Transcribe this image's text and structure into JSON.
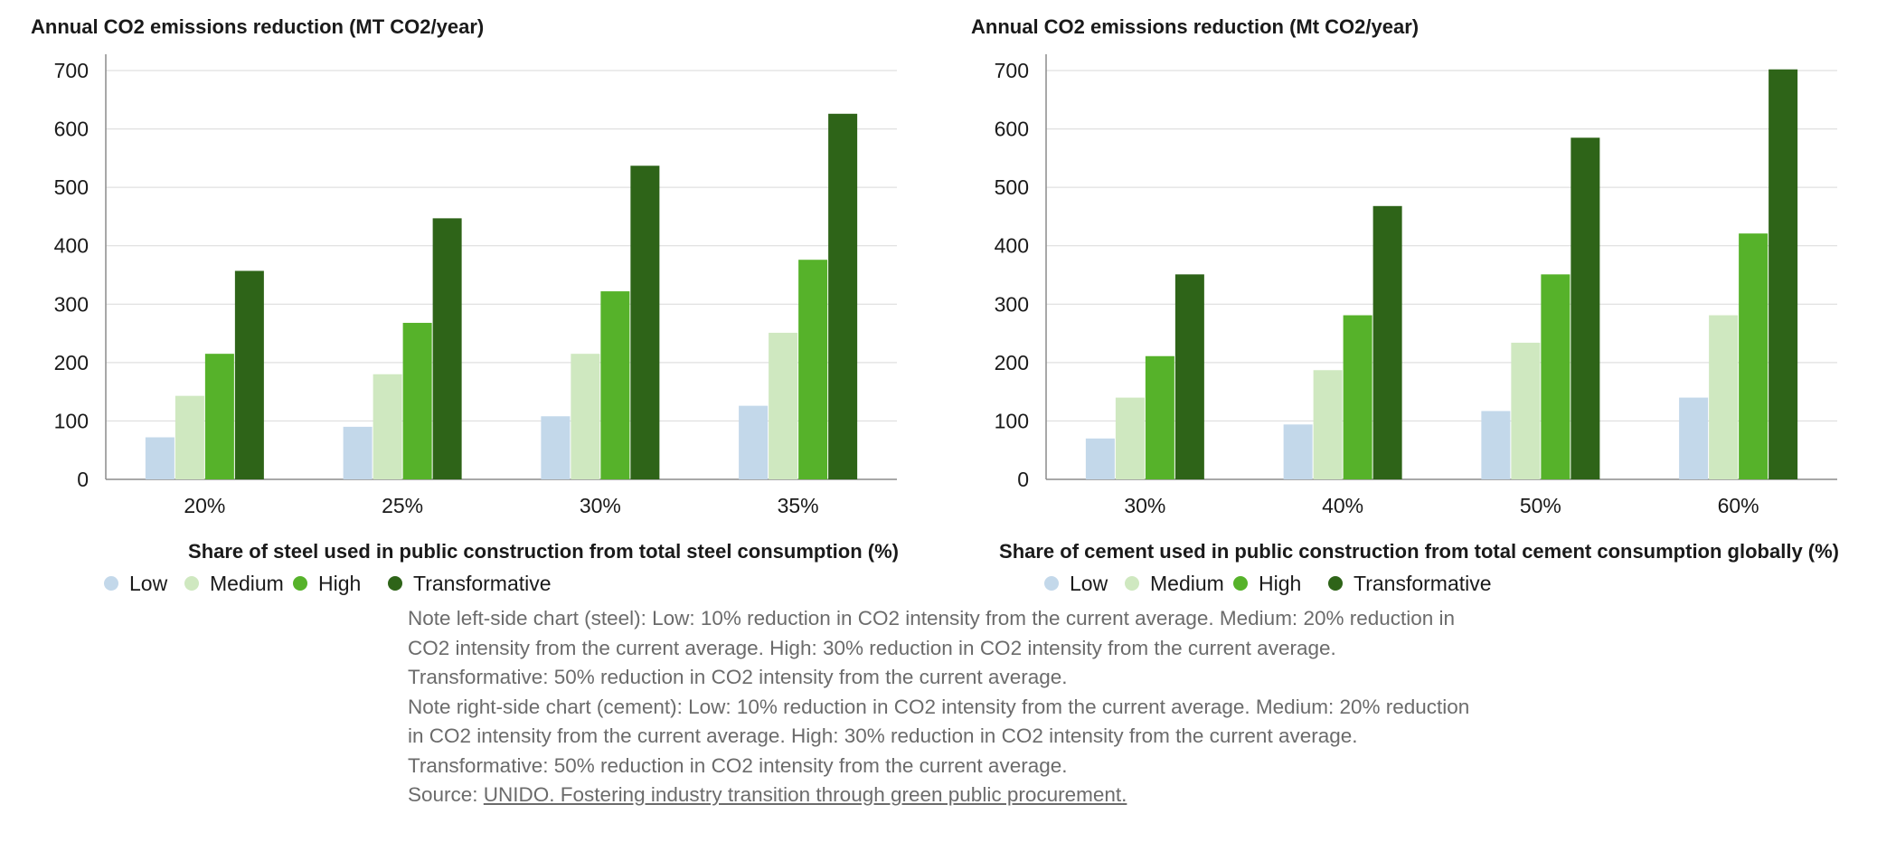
{
  "chart_data": [
    {
      "type": "bar",
      "title": "Annual CO2 emissions reduction (MT CO2/year)",
      "xlabel": "Share of steel used in public construction from total steel consumption (%)",
      "ylabel": "",
      "categories": [
        "20%",
        "25%",
        "30%",
        "35%"
      ],
      "ylim": [
        0,
        700
      ],
      "yticks": [
        "0",
        "100",
        "200",
        "300",
        "400",
        "500",
        "600",
        "700"
      ],
      "grid": true,
      "legend_position": "bottom-left",
      "series": [
        {
          "name": "Low",
          "color": "#c3d8ea",
          "values": [
            72,
            90,
            108,
            126
          ]
        },
        {
          "name": "Medium",
          "color": "#cfe8c0",
          "values": [
            143,
            180,
            215,
            251
          ]
        },
        {
          "name": "High",
          "color": "#56b22a",
          "values": [
            215,
            268,
            322,
            376
          ]
        },
        {
          "name": "Transformative",
          "color": "#2e6418",
          "values": [
            357,
            447,
            537,
            626
          ]
        }
      ]
    },
    {
      "type": "bar",
      "title": "Annual CO2 emissions reduction (Mt CO2/year)",
      "xlabel": "Share of cement used in public construction from total cement consumption globally (%)",
      "ylabel": "",
      "categories": [
        "30%",
        "40%",
        "50%",
        "60%"
      ],
      "ylim": [
        0,
        700
      ],
      "yticks": [
        "0",
        "100",
        "200",
        "300",
        "400",
        "500",
        "600",
        "700"
      ],
      "grid": true,
      "legend_position": "bottom-left",
      "series": [
        {
          "name": "Low",
          "color": "#c3d8ea",
          "values": [
            70,
            94,
            117,
            140
          ]
        },
        {
          "name": "Medium",
          "color": "#cfe8c0",
          "values": [
            140,
            187,
            234,
            281
          ]
        },
        {
          "name": "High",
          "color": "#56b22a",
          "values": [
            211,
            281,
            351,
            421
          ]
        },
        {
          "name": "Transformative",
          "color": "#2e6418",
          "values": [
            351,
            468,
            585,
            702
          ]
        }
      ]
    }
  ],
  "notes": {
    "steel": "Note left-side chart (steel): Low: 10% reduction in CO2 intensity from the current average. Medium: 20% reduction in CO2 intensity from the current average. High: 30% reduction in CO2 intensity from the current average. Transformative: 50% reduction in CO2 intensity from the current average.",
    "cement": "Note right-side chart (cement): Low: 10% reduction in CO2 intensity from the current average. Medium: 20% reduction in CO2 intensity from the current average. High: 30% reduction in CO2 intensity from the current average. Transformative: 50% reduction in CO2 intensity from the current average.",
    "source_prefix": "Source: ",
    "source_link": "UNIDO. Fostering industry transition through green public procurement."
  },
  "colors": {
    "grid": "#d9d9d9",
    "axis": "#8c8c8c",
    "note_text": "#6b6b6b"
  }
}
